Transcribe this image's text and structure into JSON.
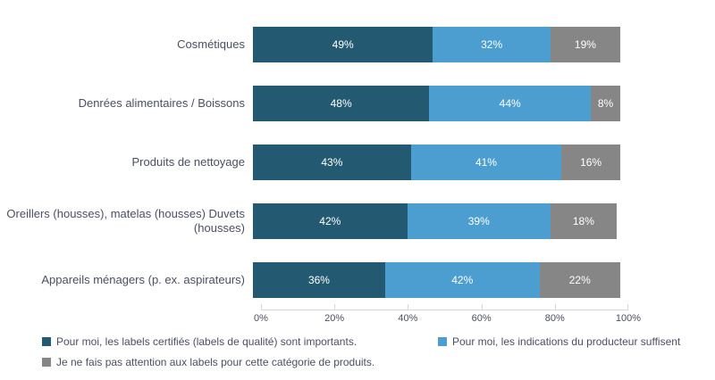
{
  "chart_data": {
    "type": "bar",
    "orientation": "horizontal-stacked",
    "title": "",
    "xlabel": "",
    "ylabel": "",
    "xlim": [
      0,
      100
    ],
    "grid": false,
    "legend_position": "bottom",
    "value_suffix": "%",
    "categories": [
      "Cosmétiques",
      "Denrées alimentaires / Boissons",
      "Produits de nettoyage",
      "Oreillers (housses), matelas (housses) Duvets (housses)",
      "Appareils ménagers (p. ex. aspirateurs)"
    ],
    "series": [
      {
        "name": "Pour moi, les labels certifiés (labels de qualité) sont importants.",
        "color": "#235a72",
        "values": [
          49,
          48,
          43,
          42,
          36
        ]
      },
      {
        "name": "Pour moi, les indications du producteur suffisent",
        "color": "#4d9ed0",
        "values": [
          32,
          44,
          41,
          39,
          42
        ]
      },
      {
        "name": "Je ne fais pas attention aux labels pour cette catégorie de produits.",
        "color": "#868686",
        "values": [
          19,
          8,
          16,
          18,
          22
        ]
      }
    ],
    "x_ticks": [
      "0%",
      "20%",
      "40%",
      "60%",
      "80%",
      "100%"
    ],
    "x_tick_values": [
      0,
      20,
      40,
      60,
      80,
      100
    ]
  },
  "colors": {
    "background": "#ffffff",
    "axis_line": "#d6d6e0",
    "text": "#4b4f63",
    "bar_value_text": "#ffffff"
  }
}
